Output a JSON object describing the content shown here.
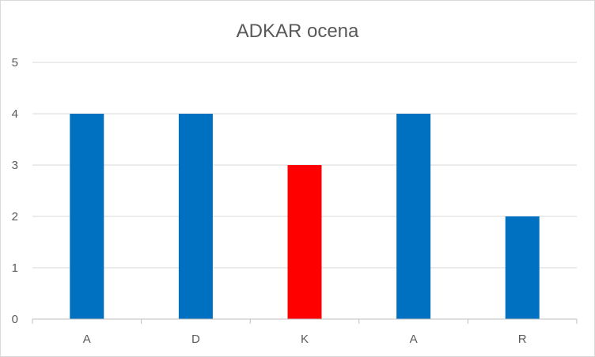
{
  "chart_data": {
    "type": "bar",
    "title": "ADKAR ocena",
    "xlabel": "",
    "ylabel": "",
    "categories": [
      "A",
      "D",
      "K",
      "A",
      "R"
    ],
    "values": [
      4,
      4,
      3,
      4,
      2
    ],
    "bar_colors": [
      "#0070C0",
      "#0070C0",
      "#FF0000",
      "#0070C0",
      "#0070C0"
    ],
    "ylim": [
      0,
      5
    ],
    "yticks": [
      "0",
      "1",
      "2",
      "3",
      "4",
      "5"
    ],
    "grid": true,
    "legend": "none",
    "colors": {
      "grid": "#d9d9d9",
      "axis": "#bfbfbf",
      "text": "#595959"
    }
  }
}
